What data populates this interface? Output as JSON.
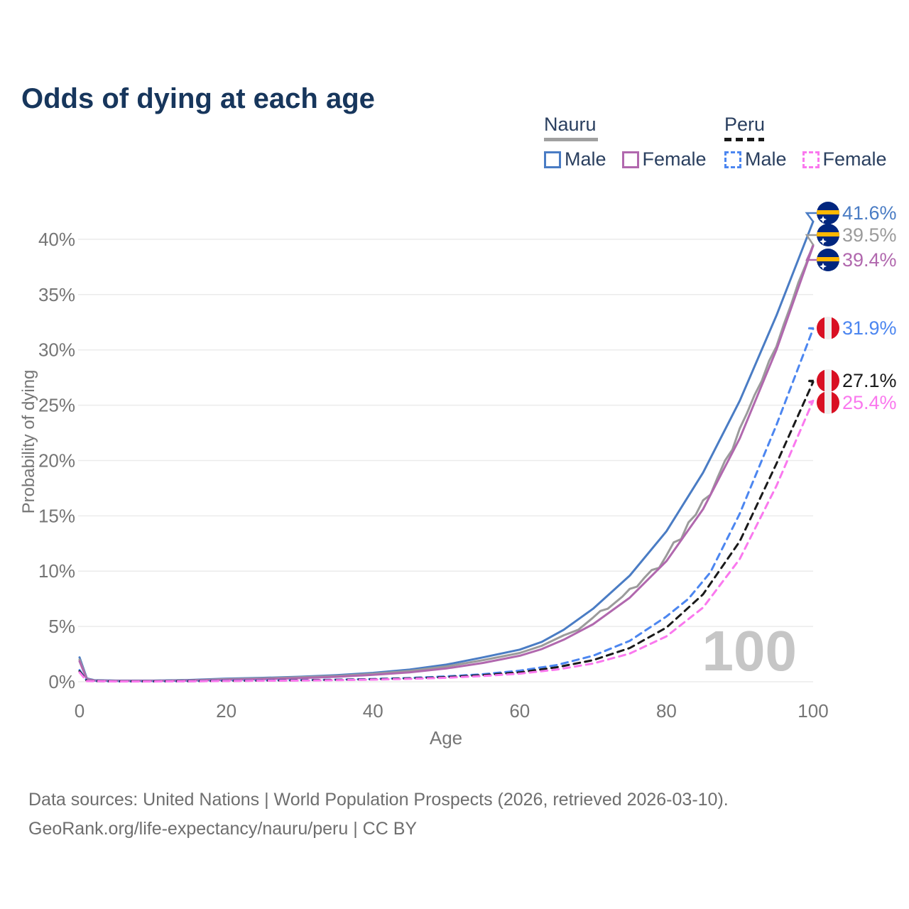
{
  "title": "Odds of dying at each age",
  "legend": {
    "groups": [
      {
        "country": "Nauru",
        "style": "solid",
        "underline_color": "#a0a0a0",
        "items": [
          {
            "label": "Male",
            "color": "#4a7cc4"
          },
          {
            "label": "Female",
            "color": "#b168ae"
          }
        ]
      },
      {
        "country": "Peru",
        "style": "dashed",
        "underline_color": "#1a1a1a",
        "items": [
          {
            "label": "Male",
            "color": "#4c86f0"
          },
          {
            "label": "Female",
            "color": "#fa78ee"
          }
        ]
      }
    ]
  },
  "watermark": "100",
  "footer": {
    "line1": "Data sources: United Nations | World Population Prospects (2026, retrieved 2026-03-10).",
    "line2": "GeoRank.org/life-expectancy/nauru/peru | CC BY"
  },
  "flags": {
    "Nauru": {
      "bg": "#01267e",
      "band": "#ffb700",
      "star": "#ffffff"
    },
    "Peru": {
      "red": "#d91023",
      "white": "#efefef"
    }
  },
  "chart_data": {
    "type": "line",
    "title": "Odds of dying at each age",
    "xlabel": "Age",
    "ylabel": "Probability of dying",
    "xlim": [
      0,
      100
    ],
    "ylim": [
      0,
      43
    ],
    "xticks": [
      0,
      20,
      40,
      60,
      80,
      100
    ],
    "yticks": [
      0,
      5,
      10,
      15,
      20,
      25,
      30,
      35,
      40
    ],
    "ytick_suffix": "%",
    "grid": "horizontal",
    "legend_position": "top-right",
    "series": [
      {
        "id": "nauru-male",
        "country": "Nauru",
        "sex": "Male",
        "color": "#4a7cc4",
        "dashed": false,
        "end_value": 41.6,
        "end_label": "41.6%",
        "points": [
          [
            0,
            2.2
          ],
          [
            1,
            0.3
          ],
          [
            2,
            0.15
          ],
          [
            5,
            0.1
          ],
          [
            10,
            0.1
          ],
          [
            15,
            0.16
          ],
          [
            20,
            0.28
          ],
          [
            25,
            0.35
          ],
          [
            30,
            0.45
          ],
          [
            35,
            0.6
          ],
          [
            40,
            0.8
          ],
          [
            45,
            1.1
          ],
          [
            50,
            1.55
          ],
          [
            55,
            2.2
          ],
          [
            60,
            2.9
          ],
          [
            63,
            3.6
          ],
          [
            66,
            4.7
          ],
          [
            70,
            6.6
          ],
          [
            75,
            9.6
          ],
          [
            80,
            13.6
          ],
          [
            85,
            18.9
          ],
          [
            90,
            25.4
          ],
          [
            95,
            33.1
          ],
          [
            100,
            41.6
          ]
        ]
      },
      {
        "id": "nauru-total",
        "country": "Nauru",
        "sex": "Both",
        "color": "#9b9b9b",
        "dashed": false,
        "end_value": 39.5,
        "end_label": "39.5%",
        "points": [
          [
            0,
            2.0
          ],
          [
            1,
            0.25
          ],
          [
            2,
            0.12
          ],
          [
            5,
            0.08
          ],
          [
            10,
            0.08
          ],
          [
            15,
            0.13
          ],
          [
            20,
            0.23
          ],
          [
            25,
            0.3
          ],
          [
            30,
            0.4
          ],
          [
            35,
            0.52
          ],
          [
            40,
            0.72
          ],
          [
            45,
            0.98
          ],
          [
            50,
            1.38
          ],
          [
            55,
            1.95
          ],
          [
            60,
            2.6
          ],
          [
            63,
            3.25
          ],
          [
            66,
            4.2
          ],
          [
            68,
            4.7
          ],
          [
            70,
            5.8
          ],
          [
            71,
            6.4
          ],
          [
            72,
            6.6
          ],
          [
            74,
            7.7
          ],
          [
            75,
            8.4
          ],
          [
            76,
            8.6
          ],
          [
            77,
            9.4
          ],
          [
            78,
            10.1
          ],
          [
            79,
            10.3
          ],
          [
            80,
            11.4
          ],
          [
            81,
            12.6
          ],
          [
            82,
            12.9
          ],
          [
            83,
            14.4
          ],
          [
            84,
            15.1
          ],
          [
            85,
            16.4
          ],
          [
            86,
            16.9
          ],
          [
            87,
            18.5
          ],
          [
            88,
            20.0
          ],
          [
            89,
            21.0
          ],
          [
            90,
            22.9
          ],
          [
            91,
            24.3
          ],
          [
            92,
            25.9
          ],
          [
            93,
            27.2
          ],
          [
            94,
            29.0
          ],
          [
            95,
            30.3
          ],
          [
            96,
            32.3
          ],
          [
            97,
            34.1
          ],
          [
            98,
            36.1
          ],
          [
            99,
            37.7
          ],
          [
            100,
            39.5
          ]
        ]
      },
      {
        "id": "nauru-female",
        "country": "Nauru",
        "sex": "Female",
        "color": "#b168ae",
        "dashed": false,
        "end_value": 39.4,
        "end_label": "39.4%",
        "points": [
          [
            0,
            1.85
          ],
          [
            1,
            0.22
          ],
          [
            2,
            0.1
          ],
          [
            5,
            0.07
          ],
          [
            10,
            0.07
          ],
          [
            15,
            0.11
          ],
          [
            20,
            0.18
          ],
          [
            25,
            0.24
          ],
          [
            30,
            0.33
          ],
          [
            35,
            0.45
          ],
          [
            40,
            0.62
          ],
          [
            45,
            0.85
          ],
          [
            50,
            1.2
          ],
          [
            55,
            1.7
          ],
          [
            60,
            2.35
          ],
          [
            63,
            2.95
          ],
          [
            66,
            3.8
          ],
          [
            70,
            5.2
          ],
          [
            75,
            7.6
          ],
          [
            80,
            10.9
          ],
          [
            85,
            15.6
          ],
          [
            90,
            22.0
          ],
          [
            95,
            30.0
          ],
          [
            100,
            39.4
          ]
        ]
      },
      {
        "id": "peru-male",
        "country": "Peru",
        "sex": "Male",
        "color": "#4c86f0",
        "dashed": true,
        "end_value": 31.9,
        "end_label": "31.9%",
        "points": [
          [
            0,
            1.05
          ],
          [
            1,
            0.08
          ],
          [
            5,
            0.03
          ],
          [
            10,
            0.03
          ],
          [
            15,
            0.06
          ],
          [
            20,
            0.1
          ],
          [
            25,
            0.12
          ],
          [
            30,
            0.15
          ],
          [
            35,
            0.19
          ],
          [
            40,
            0.25
          ],
          [
            45,
            0.34
          ],
          [
            50,
            0.48
          ],
          [
            55,
            0.68
          ],
          [
            60,
            1.0
          ],
          [
            65,
            1.5
          ],
          [
            70,
            2.35
          ],
          [
            75,
            3.7
          ],
          [
            80,
            5.9
          ],
          [
            83,
            7.5
          ],
          [
            86,
            9.9
          ],
          [
            90,
            15.2
          ],
          [
            95,
            23.2
          ],
          [
            100,
            31.9
          ]
        ]
      },
      {
        "id": "peru-total",
        "country": "Peru",
        "sex": "Both",
        "color": "#1a1a1a",
        "dashed": true,
        "end_value": 27.1,
        "end_label": "27.1%",
        "points": [
          [
            0,
            0.95
          ],
          [
            1,
            0.07
          ],
          [
            5,
            0.03
          ],
          [
            10,
            0.03
          ],
          [
            15,
            0.05
          ],
          [
            20,
            0.08
          ],
          [
            25,
            0.1
          ],
          [
            30,
            0.13
          ],
          [
            35,
            0.17
          ],
          [
            40,
            0.22
          ],
          [
            45,
            0.3
          ],
          [
            50,
            0.42
          ],
          [
            55,
            0.6
          ],
          [
            60,
            0.85
          ],
          [
            65,
            1.3
          ],
          [
            70,
            1.95
          ],
          [
            75,
            3.05
          ],
          [
            80,
            4.9
          ],
          [
            85,
            7.9
          ],
          [
            90,
            12.7
          ],
          [
            95,
            19.7
          ],
          [
            100,
            27.1
          ]
        ]
      },
      {
        "id": "peru-female",
        "country": "Peru",
        "sex": "Female",
        "color": "#fa78ee",
        "dashed": true,
        "end_value": 25.4,
        "end_label": "25.4%",
        "points": [
          [
            0,
            0.85
          ],
          [
            1,
            0.06
          ],
          [
            5,
            0.025
          ],
          [
            10,
            0.025
          ],
          [
            15,
            0.04
          ],
          [
            20,
            0.07
          ],
          [
            25,
            0.09
          ],
          [
            30,
            0.11
          ],
          [
            35,
            0.14
          ],
          [
            40,
            0.19
          ],
          [
            45,
            0.26
          ],
          [
            50,
            0.36
          ],
          [
            55,
            0.52
          ],
          [
            60,
            0.73
          ],
          [
            65,
            1.1
          ],
          [
            70,
            1.65
          ],
          [
            75,
            2.55
          ],
          [
            80,
            4.1
          ],
          [
            85,
            6.7
          ],
          [
            90,
            11.1
          ],
          [
            95,
            17.7
          ],
          [
            100,
            25.4
          ]
        ]
      }
    ]
  }
}
